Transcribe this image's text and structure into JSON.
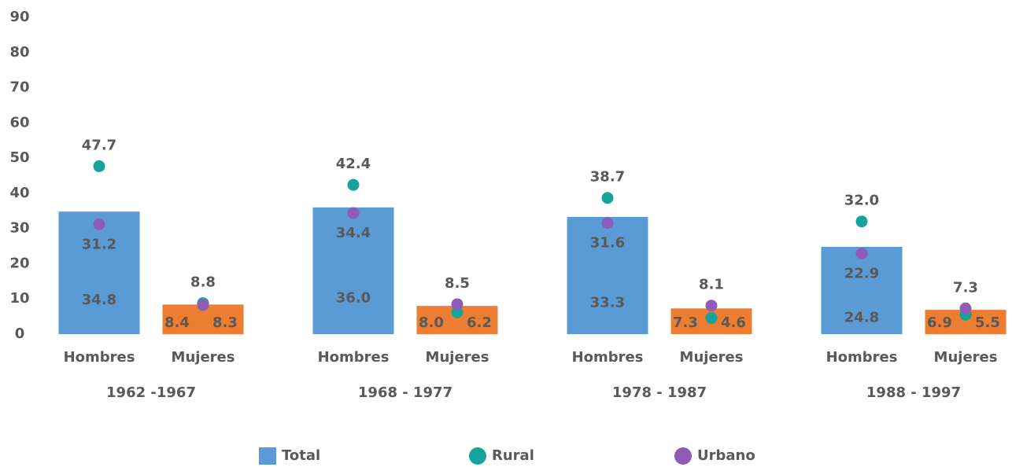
{
  "chart_data": {
    "type": "bar",
    "categories": [
      "Hombres",
      "Mujeres",
      "Hombres",
      "Mujeres",
      "Hombres",
      "Mujeres",
      "Hombres",
      "Mujeres"
    ],
    "groups": [
      {
        "label": "1962 -1967",
        "size": 2
      },
      {
        "label": "1968 - 1977",
        "size": 2
      },
      {
        "label": "1978 - 1987",
        "size": 2
      },
      {
        "label": "1988 - 1997",
        "size": 2
      }
    ],
    "series": [
      {
        "name": "Total",
        "type": "bar",
        "color": "#5b9bd5",
        "colors": [
          "#5b9bd5",
          "#ed7d31",
          "#5b9bd5",
          "#ed7d31",
          "#5b9bd5",
          "#ed7d31",
          "#5b9bd5",
          "#ed7d31"
        ],
        "values": [
          34.8,
          8.4,
          36.0,
          8.0,
          33.3,
          7.3,
          24.8,
          6.9
        ],
        "value_labels": [
          "34.8",
          "8.4",
          "36.0",
          "8.0",
          "33.3",
          "7.3",
          "24.8",
          "6.9"
        ]
      },
      {
        "name": "Rural",
        "type": "scatter",
        "color": "#17a29a",
        "values": [
          47.7,
          8.8,
          42.4,
          6.2,
          38.7,
          4.6,
          32.0,
          5.5
        ],
        "value_labels": [
          "47.7",
          "8.8",
          "42.4",
          "6.2",
          "38.7",
          "4.6",
          "32.0",
          "5.5"
        ]
      },
      {
        "name": "Urbano",
        "type": "scatter",
        "color": "#8e5bb8",
        "values": [
          31.2,
          8.3,
          34.4,
          8.5,
          31.6,
          8.1,
          22.9,
          7.3
        ],
        "value_labels": [
          "31.2",
          "8.3",
          "34.4",
          "8.5",
          "31.6",
          "8.1",
          "22.9",
          "7.3"
        ]
      }
    ],
    "ylim": [
      0,
      90
    ],
    "yticks": [
      0,
      10,
      20,
      30,
      40,
      50,
      60,
      70,
      80,
      90
    ],
    "grid": false,
    "legend": "bottom"
  }
}
